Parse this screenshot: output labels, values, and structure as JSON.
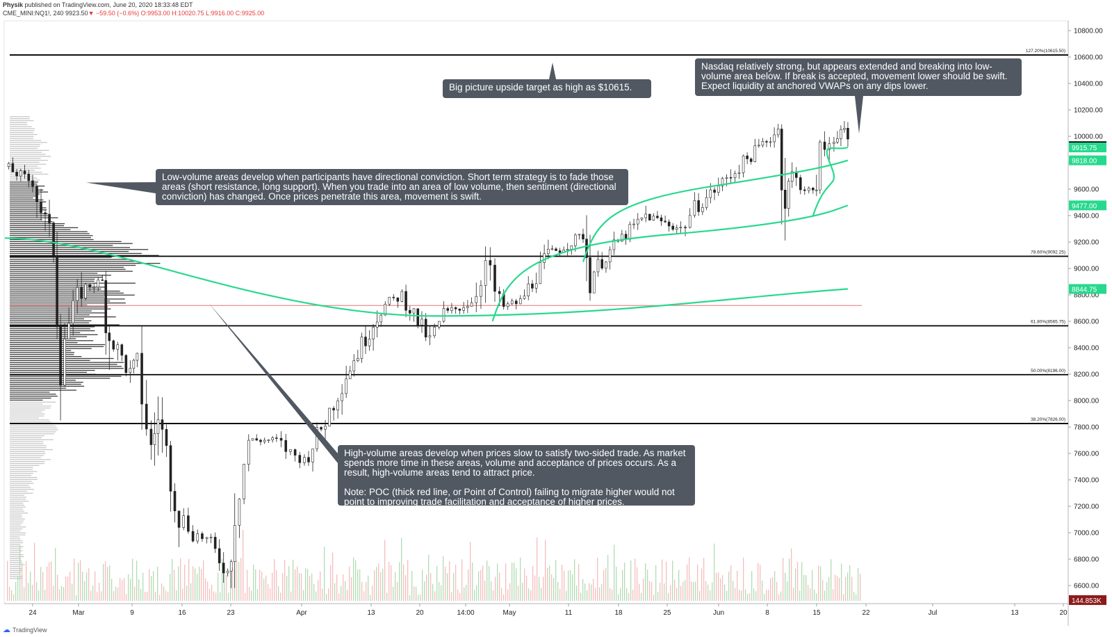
{
  "header": {
    "author": "Physik",
    "published": "published on TradingView.com, June 20, 2020 18:33:48 EDT",
    "symbol": "CME_MINI:NQ1!, 240",
    "last": "9923.50",
    "change": "−59.50 (−0.6%)",
    "ohlc": "O:9953.00 H:10020.75 L:9916.00 C:9925.00"
  },
  "footer": {
    "brand": "TradingView"
  },
  "colors": {
    "up": "#26a69a",
    "down": "#ef5350",
    "vwap": "#26d98d",
    "poc": "#e57373",
    "level": "#000000",
    "profile_light": "#c8c8c8",
    "profile_dark": "#3e3e3e",
    "note_bg": "#515862"
  },
  "notes": {
    "target": "Big picture upside target as high as $10615.",
    "nasdaq": "Nasdaq relatively strong, but appears extended and breaking into low-volume area below. If break is accepted, movement lower should be swift. Expect liquidity at anchored VWAPs on any dips lower.",
    "low_volume": "Low-volume areas develop when participants have directional conviction. Short term strategy is to fade those areas (short resistance, long support). When you trade into an area of low volume, then sentiment (directional conviction) has changed. Once prices penetrate this area, movement is swift.",
    "high_volume_1": "High-volume areas develop when prices slow to satisfy two-sided trade. As market spends more time in these areas, volume and acceptance of prices occurs. As a result, high-volume areas tend to attract price.",
    "high_volume_2": "Note: POC (thick red line, or Point of Control) failing to migrate higher would not point to improving trade facilitation and acceptance of higher prices."
  },
  "chart_data": {
    "type": "line",
    "ylim": [
      6450,
      10900
    ],
    "y_ticks": [
      6600,
      6800,
      7000,
      7200,
      7400,
      7600,
      7800,
      8000,
      8200,
      8400,
      8600,
      8800,
      9000,
      9200,
      9400,
      9600,
      9800,
      10000,
      10200,
      10400,
      10600,
      10800
    ],
    "x_labels": [
      "24",
      "Mar",
      "9",
      "16",
      "23",
      "Apr",
      "13",
      "20",
      "14:00",
      "May",
      "11",
      "18",
      "25",
      "Jun",
      "8",
      "15",
      "22",
      "Jul",
      "13",
      "20"
    ],
    "price_path": [
      [
        "Feb 20",
        9770
      ],
      [
        "Feb 24",
        9650
      ],
      [
        "Feb 27",
        9150
      ],
      [
        "Feb 28",
        8400
      ],
      [
        "Mar 2",
        8850
      ],
      [
        "Mar 5",
        8900
      ],
      [
        "Mar 6",
        8500
      ],
      [
        "Mar 9",
        8200
      ],
      [
        "Mar 10",
        8300
      ],
      [
        "Mar 12",
        7600
      ],
      [
        "Mar 13",
        7900
      ],
      [
        "Mar 16",
        7150
      ],
      [
        "Mar 18",
        7000
      ],
      [
        "Mar 20",
        6950
      ],
      [
        "Mar 23",
        6700
      ],
      [
        "Mar 24",
        7200
      ],
      [
        "Mar 26",
        7700
      ],
      [
        "Mar 30",
        7700
      ],
      [
        "Apr 1",
        7600
      ],
      [
        "Apr 3",
        7550
      ],
      [
        "Apr 6",
        7850
      ],
      [
        "Apr 9",
        8200
      ],
      [
        "Apr 14",
        8700
      ],
      [
        "Apr 17",
        8800
      ],
      [
        "Apr 21",
        8450
      ],
      [
        "Apr 23",
        8650
      ],
      [
        "Apr 27",
        8750
      ],
      [
        "Apr 29",
        9050
      ],
      [
        "May 1",
        8700
      ],
      [
        "May 4",
        8750
      ],
      [
        "May 8",
        9100
      ],
      [
        "May 13",
        9250
      ],
      [
        "May 14",
        8950
      ],
      [
        "May 18",
        9200
      ],
      [
        "May 22",
        9400
      ],
      [
        "May 27",
        9300
      ],
      [
        "May 29",
        9450
      ],
      [
        "Jun 2",
        9650
      ],
      [
        "Jun 5",
        9800
      ],
      [
        "Jun 10",
        10050
      ],
      [
        "Jun 11",
        9550
      ],
      [
        "Jun 12",
        9700
      ],
      [
        "Jun 15",
        9550
      ],
      [
        "Jun 16",
        9850
      ],
      [
        "Jun 18",
        10000
      ],
      [
        "Jun 19",
        10050
      ],
      [
        "Jun 20",
        9925
      ]
    ],
    "fib_levels": [
      {
        "label": "127.20%(10615.50)",
        "value": 10615.5
      },
      {
        "label": "78.60%(9092.25)",
        "value": 9092.25
      },
      {
        "label": "61.80%(8565.75)",
        "value": 8565.75
      },
      {
        "label": "50.00%(8196.00)",
        "value": 8196
      },
      {
        "label": "38.20%(7826.00)",
        "value": 7826
      }
    ],
    "poc": 8720,
    "vwaps": [
      {
        "start": [
          "Feb 20",
          9230
        ],
        "end": [
          "Jun 20",
          8844.75
        ],
        "min": [
          "Apr 22",
          8640
        ],
        "label": "8844.75"
      },
      {
        "start": [
          "Apr 30",
          8600
        ],
        "end": [
          "Jun 20",
          9477
        ],
        "label": "9477.00"
      },
      {
        "start": [
          "May 13",
          9050
        ],
        "end": [
          "Jun 20",
          9818
        ],
        "label": "9818.00"
      },
      {
        "start": [
          "Jun 15",
          9400
        ],
        "end": [
          "Jun 20",
          9915.75
        ],
        "label": "9915.75"
      }
    ],
    "price_labels": [
      {
        "label": "9925.00",
        "value": 9925,
        "color": "#000000"
      },
      {
        "label": "9915.75",
        "value": 9915.75,
        "color": "#26d98d"
      },
      {
        "label": "9818.00",
        "value": 9818,
        "color": "#26d98d"
      },
      {
        "label": "9477.00",
        "value": 9477,
        "color": "#26d98d"
      },
      {
        "label": "8844.75",
        "value": 8844.75,
        "color": "#26d98d"
      },
      {
        "label": "144.853K",
        "value": 6490,
        "color": "#8b1a1a"
      }
    ]
  }
}
